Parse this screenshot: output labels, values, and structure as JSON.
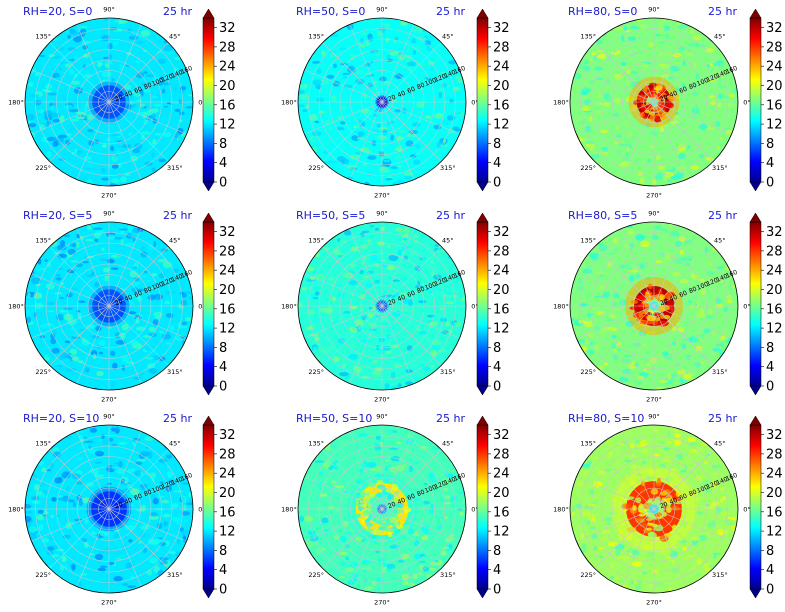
{
  "figure": {
    "colorbar": {
      "ticks": [
        "0",
        "4",
        "8",
        "12",
        "16",
        "20",
        "24",
        "28",
        "32"
      ],
      "vmin": 0,
      "vmax": 34,
      "extend": "both",
      "colormap": "jet"
    },
    "angle_labels": [
      "0°",
      "45°",
      "90°",
      "135°",
      "180°",
      "225°",
      "270°",
      "315°"
    ],
    "radial_labels": [
      "20",
      "40",
      "60",
      "80",
      "100",
      "120",
      "140",
      "160"
    ]
  },
  "chart_data": [
    {
      "type": "heatmap",
      "projection": "polar",
      "title_left": "RH=20, S=0",
      "title_right": "25 hr",
      "rmax": 160,
      "grid": true,
      "core": {
        "value": 7,
        "radius": 32
      },
      "ring": {
        "value": 14,
        "radius": 0,
        "width": 0
      },
      "background": 12
    },
    {
      "type": "heatmap",
      "projection": "polar",
      "title_left": "RH=50, S=0",
      "title_right": "25 hr",
      "rmax": 160,
      "grid": true,
      "core": {
        "value": 3,
        "radius": 10
      },
      "ring": {
        "value": 14,
        "radius": 0,
        "width": 0
      },
      "background": 13
    },
    {
      "type": "heatmap",
      "projection": "polar",
      "title_left": "RH=80, S=0",
      "title_right": "25 hr",
      "rmax": 160,
      "grid": true,
      "core": {
        "value": 14,
        "radius": 6
      },
      "ring": {
        "value": 32,
        "radius": 24,
        "width": 18
      },
      "background": 17
    },
    {
      "type": "heatmap",
      "projection": "polar",
      "title_left": "RH=20, S=5",
      "title_right": "25 hr",
      "rmax": 160,
      "grid": true,
      "core": {
        "value": 7,
        "radius": 32
      },
      "ring": {
        "value": 14,
        "radius": 0,
        "width": 0
      },
      "background": 12
    },
    {
      "type": "heatmap",
      "projection": "polar",
      "title_left": "RH=50, S=5",
      "title_right": "25 hr",
      "rmax": 160,
      "grid": true,
      "core": {
        "value": 7,
        "radius": 10
      },
      "ring": {
        "value": 14,
        "radius": 0,
        "width": 0
      },
      "background": 14
    },
    {
      "type": "heatmap",
      "projection": "polar",
      "title_left": "RH=80, S=5",
      "title_right": "25 hr",
      "rmax": 160,
      "grid": true,
      "core": {
        "value": 13,
        "radius": 8
      },
      "ring": {
        "value": 32,
        "radius": 28,
        "width": 20
      },
      "background": 17
    },
    {
      "type": "heatmap",
      "projection": "polar",
      "title_left": "RH=20, S=10",
      "title_right": "25 hr",
      "rmax": 160,
      "grid": true,
      "core": {
        "value": 6,
        "radius": 34
      },
      "ring": {
        "value": 14,
        "radius": 0,
        "width": 0
      },
      "background": 12
    },
    {
      "type": "heatmap",
      "projection": "polar",
      "title_left": "RH=50, S=10",
      "title_right": "25 hr",
      "rmax": 160,
      "grid": true,
      "core": {
        "value": 8,
        "radius": 8
      },
      "ring": {
        "value": 22,
        "radius": 40,
        "width": 20
      },
      "background": 15
    },
    {
      "type": "heatmap",
      "projection": "polar",
      "title_left": "RH=80, S=10",
      "title_right": "25 hr",
      "rmax": 160,
      "grid": true,
      "core": {
        "value": 12,
        "radius": 8
      },
      "ring": {
        "value": 28,
        "radius": 36,
        "width": 34
      },
      "background": 18
    }
  ]
}
